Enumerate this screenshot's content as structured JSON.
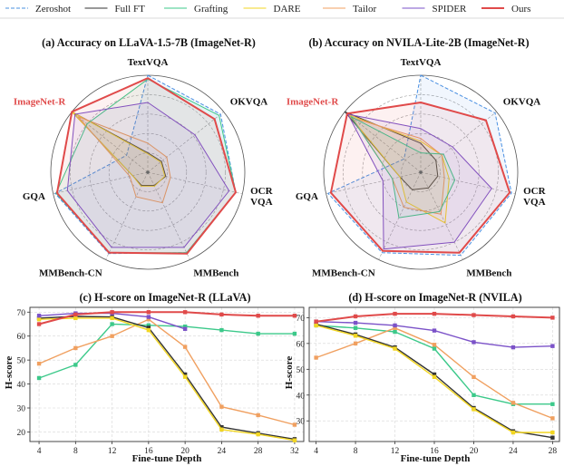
{
  "legend": {
    "entries": [
      {
        "name": "Zeroshot",
        "color": "#4a90e2",
        "dashed": true,
        "width": 1
      },
      {
        "name": "Full FT",
        "color": "#333333",
        "dashed": false,
        "width": 1
      },
      {
        "name": "Grafting",
        "color": "#3cc98a",
        "dashed": false,
        "width": 1
      },
      {
        "name": "DARE",
        "color": "#f2d622",
        "dashed": false,
        "width": 1
      },
      {
        "name": "Tailor",
        "color": "#f0a060",
        "dashed": false,
        "width": 1
      },
      {
        "name": "SPIDER",
        "color": "#7b52c8",
        "dashed": false,
        "width": 1
      },
      {
        "name": "Ours",
        "color": "#e04a4a",
        "dashed": false,
        "width": 2
      }
    ]
  },
  "chart_data": [
    {
      "type": "radar",
      "title": "(a)  Accuracy on LLaVA-1.5-7B (ImageNet-R)",
      "axes": [
        "TextVQA",
        "OKVQA",
        "OCR VQA",
        "MMBench",
        "MMBench-CN",
        "GQA",
        "ImageNet-R"
      ],
      "highlight_axis": "ImageNet-R",
      "grid": true,
      "series": [
        {
          "name": "Zeroshot",
          "values": [
            1.0,
            0.96,
            0.93,
            0.92,
            0.93,
            0.98,
            0.28
          ]
        },
        {
          "name": "Full FT",
          "values": [
            0.2,
            0.18,
            0.19,
            0.15,
            0.15,
            0.16,
            1.0
          ]
        },
        {
          "name": "Grafting",
          "values": [
            0.96,
            0.94,
            0.93,
            0.92,
            0.92,
            0.97,
            0.8
          ]
        },
        {
          "name": "DARE",
          "values": [
            0.19,
            0.17,
            0.18,
            0.16,
            0.16,
            0.16,
            1.0
          ]
        },
        {
          "name": "Tailor",
          "values": [
            0.3,
            0.25,
            0.24,
            0.35,
            0.28,
            0.19,
            0.92
          ]
        },
        {
          "name": "SPIDER",
          "values": [
            0.72,
            0.62,
            0.86,
            0.86,
            0.86,
            0.85,
            0.96
          ]
        },
        {
          "name": "Ours",
          "values": [
            0.97,
            0.88,
            0.93,
            0.93,
            0.92,
            0.96,
            1.0
          ]
        }
      ]
    },
    {
      "type": "radar",
      "title": "(b)  Accuracy on NVILA-Lite-2B (ImageNet-R)",
      "axes": [
        "TextVQA",
        "OKVQA",
        "OCR VQA",
        "MMBench",
        "MMBench-CN",
        "GQA",
        "ImageNet-R"
      ],
      "highlight_axis": "ImageNet-R",
      "grid": true,
      "series": [
        {
          "name": "Zeroshot",
          "values": [
            1.0,
            0.98,
            0.96,
            0.95,
            0.92,
            0.98,
            0.22
          ]
        },
        {
          "name": "Full FT",
          "values": [
            0.3,
            0.2,
            0.18,
            0.18,
            0.2,
            0.22,
            1.0
          ]
        },
        {
          "name": "Grafting",
          "values": [
            0.2,
            0.3,
            0.36,
            0.45,
            0.52,
            0.3,
            0.92
          ]
        },
        {
          "name": "DARE",
          "values": [
            0.32,
            0.28,
            0.3,
            0.58,
            0.34,
            0.22,
            0.95
          ]
        },
        {
          "name": "Tailor",
          "values": [
            0.35,
            0.28,
            0.25,
            0.48,
            0.4,
            0.3,
            0.9
          ]
        },
        {
          "name": "SPIDER",
          "values": [
            0.45,
            0.42,
            0.75,
            0.8,
            0.88,
            0.4,
            0.96
          ]
        },
        {
          "name": "Ours",
          "values": [
            0.72,
            0.86,
            0.94,
            0.92,
            0.9,
            0.95,
            0.97
          ]
        }
      ]
    },
    {
      "type": "line",
      "title": "(c)  H-score on ImageNet-R (LLaVA)",
      "xlabel": "Fine-tune Depth",
      "ylabel": "H-score",
      "x": [
        4,
        8,
        12,
        16,
        20,
        24,
        28,
        32
      ],
      "xlim": [
        3,
        33
      ],
      "ylim": [
        16,
        72
      ],
      "yticks": [
        20,
        30,
        40,
        50,
        60,
        70
      ],
      "grid": true,
      "series": [
        {
          "name": "Full FT",
          "values": [
            67.5,
            68.2,
            68.0,
            63.5,
            44.0,
            22.0,
            19.5,
            17.0
          ]
        },
        {
          "name": "Grafting",
          "values": [
            42.5,
            48.0,
            65.0,
            64.5,
            64.0,
            62.5,
            61.0,
            61.0
          ]
        },
        {
          "name": "DARE",
          "values": [
            67.0,
            67.5,
            67.5,
            62.5,
            43.0,
            21.0,
            19.0,
            16.5
          ]
        },
        {
          "name": "Tailor",
          "values": [
            48.5,
            55.0,
            60.0,
            67.0,
            55.5,
            30.5,
            27.0,
            23.0
          ]
        },
        {
          "name": "SPIDER",
          "values": [
            68.5,
            69.5,
            69.5,
            68.0,
            63.0,
            null,
            null,
            null
          ]
        },
        {
          "name": "Ours",
          "values": [
            65.0,
            69.0,
            70.0,
            70.0,
            70.0,
            69.0,
            68.5,
            68.5
          ]
        }
      ]
    },
    {
      "type": "line",
      "title": "(d)  H-score on ImageNet-R (NVILA)",
      "xlabel": "Fine-tune Depth",
      "ylabel": "H-score",
      "x": [
        4,
        8,
        12,
        16,
        20,
        24,
        28
      ],
      "xlim": [
        3.3,
        28.7
      ],
      "ylim": [
        22,
        74
      ],
      "yticks": [
        30,
        40,
        50,
        60,
        70
      ],
      "grid": true,
      "series": [
        {
          "name": "Full FT",
          "values": [
            67.5,
            63.5,
            58.5,
            48.0,
            35.0,
            26.0,
            23.5
          ]
        },
        {
          "name": "Grafting",
          "values": [
            67.0,
            66.0,
            64.5,
            58.0,
            40.0,
            36.5,
            36.5
          ]
        },
        {
          "name": "DARE",
          "values": [
            67.0,
            63.0,
            58.0,
            47.0,
            34.5,
            25.5,
            25.5
          ]
        },
        {
          "name": "Tailor",
          "values": [
            54.5,
            60.0,
            66.0,
            59.5,
            47.0,
            37.0,
            31.0
          ]
        },
        {
          "name": "SPIDER",
          "values": [
            68.5,
            68.0,
            67.0,
            65.0,
            60.5,
            58.5,
            59.0
          ]
        },
        {
          "name": "Ours",
          "values": [
            68.5,
            70.5,
            71.5,
            71.5,
            71.0,
            70.5,
            70.0
          ]
        }
      ]
    }
  ]
}
